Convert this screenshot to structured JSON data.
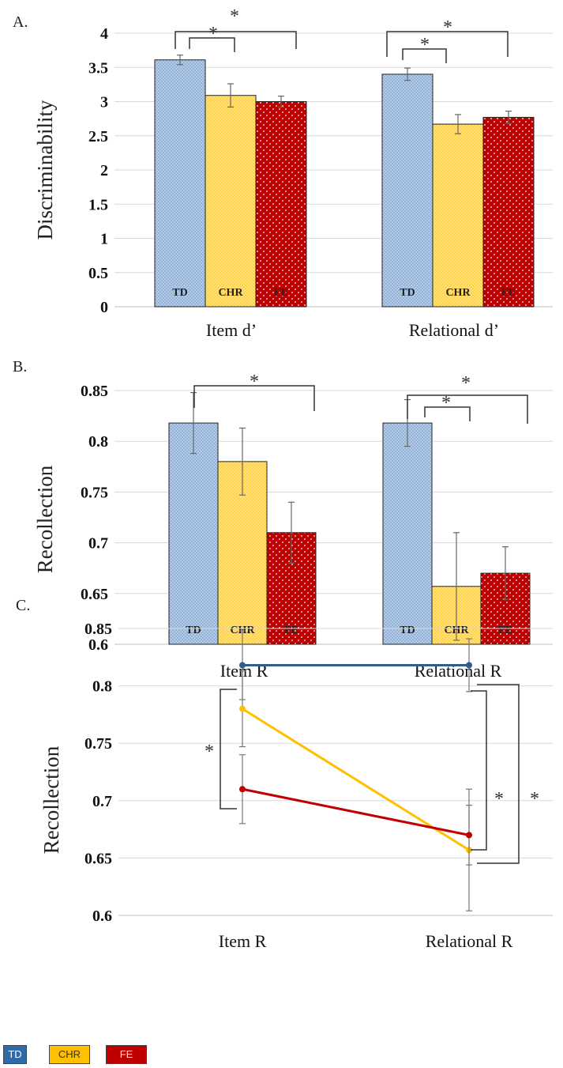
{
  "legend": [
    {
      "label": "TD",
      "color": "#2e6aa8",
      "text_color": "#ffffff"
    },
    {
      "label": "CHR",
      "color": "#ffc000",
      "text_color": "#333333"
    },
    {
      "label": "FE",
      "color": "#c00000",
      "text_color": "#ffdddd"
    }
  ],
  "chart_data": [
    {
      "panel": "A.",
      "type": "bar",
      "ylabel": "Discriminability",
      "ylim": [
        0,
        4
      ],
      "yticks": [
        "0",
        "0.5",
        "1",
        "1.5",
        "2",
        "2.5",
        "3",
        "3.5",
        "4"
      ],
      "ytick_values": [
        0,
        0.5,
        1,
        1.5,
        2,
        2.5,
        3,
        3.5,
        4
      ],
      "categories": [
        "Item d’",
        "Relational d’"
      ],
      "series": [
        {
          "name": "TD",
          "values": [
            3.61,
            3.4
          ],
          "errors": [
            0.07,
            0.09
          ]
        },
        {
          "name": "CHR",
          "values": [
            3.09,
            2.67
          ],
          "errors": [
            0.17,
            0.14
          ]
        },
        {
          "name": "FE",
          "values": [
            3.0,
            2.77
          ],
          "errors": [
            0.08,
            0.09
          ]
        }
      ],
      "bar_labels": [
        "TD",
        "CHR",
        "FE"
      ],
      "significance": [
        "*",
        "*",
        "*",
        "*"
      ],
      "grid": true
    },
    {
      "panel": "B.",
      "type": "bar",
      "ylabel": "Recollection",
      "ylim": [
        0.6,
        0.85
      ],
      "yticks": [
        "0.6",
        "0.65",
        "0.7",
        "0.75",
        "0.8",
        "0.85"
      ],
      "ytick_values": [
        0.6,
        0.65,
        0.7,
        0.75,
        0.8,
        0.85
      ],
      "categories": [
        "Item R",
        "Relational R"
      ],
      "series": [
        {
          "name": "TD",
          "values": [
            0.818,
            0.818
          ],
          "errors": [
            0.03,
            0.023
          ]
        },
        {
          "name": "CHR",
          "values": [
            0.78,
            0.657
          ],
          "errors": [
            0.033,
            0.053
          ]
        },
        {
          "name": "FE",
          "values": [
            0.71,
            0.67
          ],
          "errors": [
            0.03,
            0.026
          ]
        }
      ],
      "bar_labels": [
        "TD",
        "CHR",
        "FE"
      ],
      "significance": [
        "*",
        "*",
        "*"
      ],
      "grid": true
    },
    {
      "panel": "C.",
      "type": "line",
      "ylabel": "Recollection",
      "ylim": [
        0.6,
        0.85
      ],
      "yticks": [
        "0.6",
        "0.65",
        "0.7",
        "0.75",
        "0.8",
        "0.85"
      ],
      "ytick_values": [
        0.6,
        0.65,
        0.7,
        0.75,
        0.8,
        0.85
      ],
      "categories": [
        "Item R",
        "Relational R"
      ],
      "series": [
        {
          "name": "TD",
          "values": [
            0.818,
            0.818
          ],
          "errors": [
            0.03,
            0.023
          ]
        },
        {
          "name": "CHR",
          "values": [
            0.78,
            0.657
          ],
          "errors": [
            0.033,
            0.053
          ]
        },
        {
          "name": "FE",
          "values": [
            0.71,
            0.67
          ],
          "errors": [
            0.03,
            0.026
          ]
        }
      ],
      "significance": [
        "*",
        "*",
        "*"
      ],
      "grid": true
    }
  ]
}
